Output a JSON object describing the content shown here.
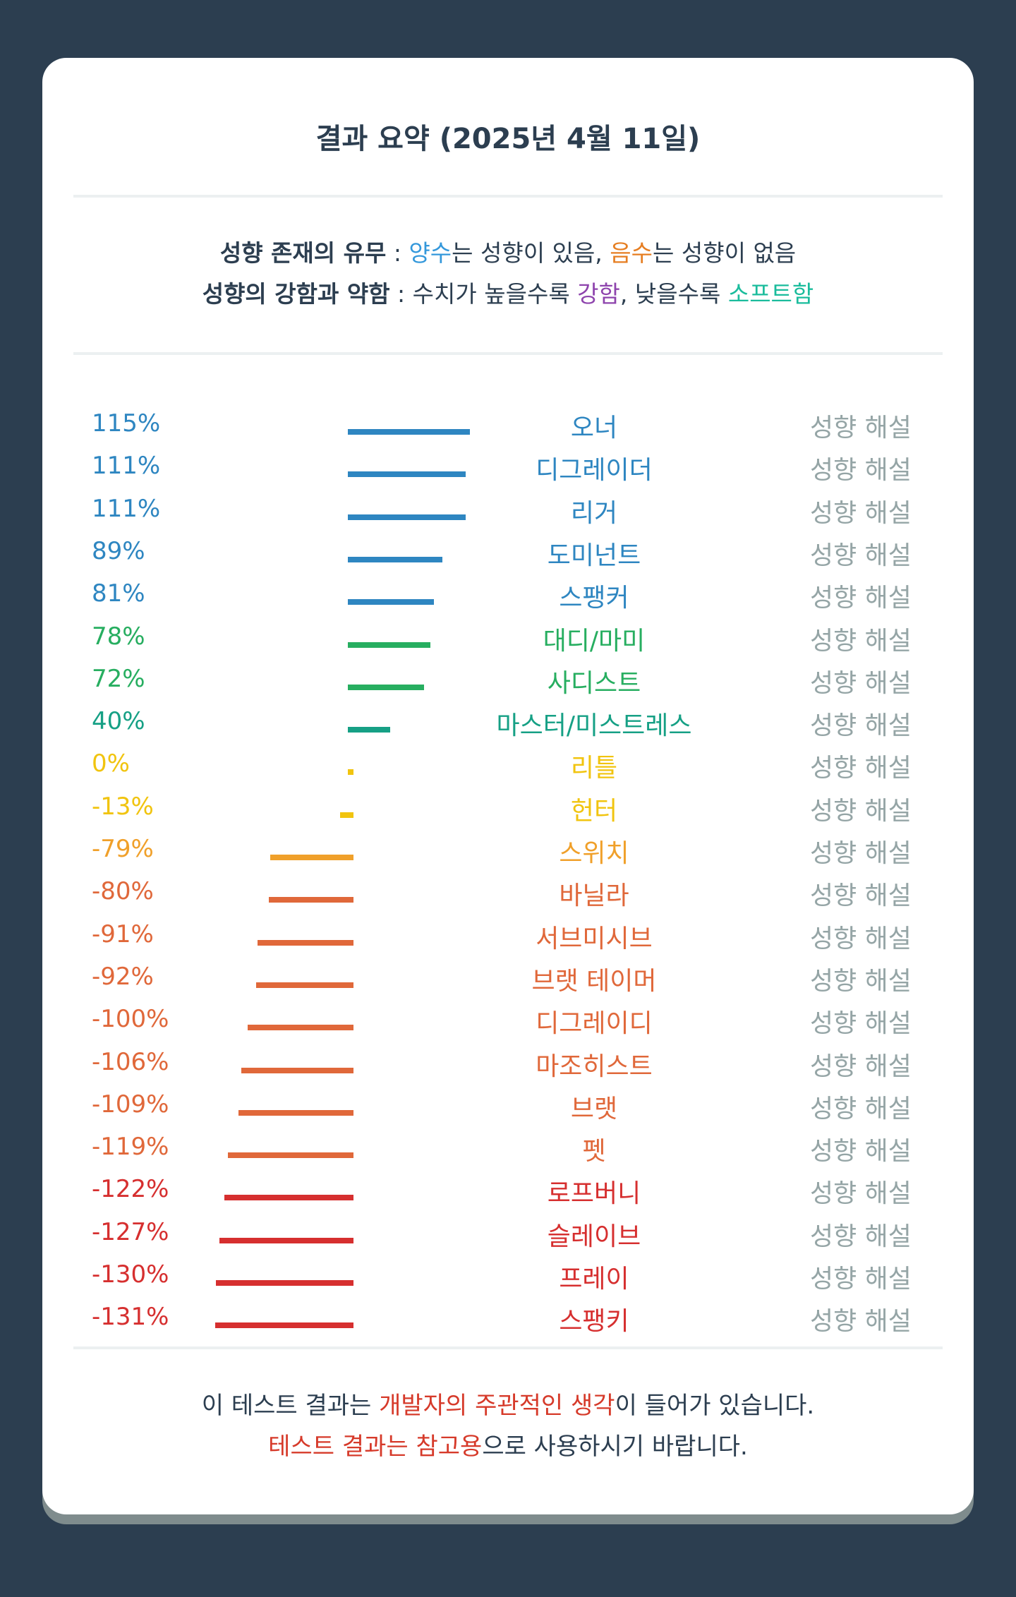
{
  "title": "결과 요약 (2025년 4월 11일)",
  "legend": {
    "line1": {
      "label": "성향 존재의 유무",
      "sep": " : ",
      "positive": "양수",
      "positive_text": "는 성향이 있음, ",
      "negative": "음수",
      "negative_text": "는 성향이 없음"
    },
    "line2": {
      "label": "성향의 강함과 약함",
      "sep": " : ",
      "text1": "수치가 높을수록 ",
      "strong": "강함",
      "text2": ", 낮을수록 ",
      "soft": "소프트함"
    }
  },
  "link_label": "성향 해설",
  "rows": [
    {
      "name": "오너",
      "value": 115,
      "display": "115%",
      "color": "#2e86c1"
    },
    {
      "name": "디그레이더",
      "value": 111,
      "display": "111%",
      "color": "#2e86c1"
    },
    {
      "name": "리거",
      "value": 111,
      "display": "111%",
      "color": "#2e86c1"
    },
    {
      "name": "도미넌트",
      "value": 89,
      "display": "89%",
      "color": "#2e86c1"
    },
    {
      "name": "스팽커",
      "value": 81,
      "display": "81%",
      "color": "#2e86c1"
    },
    {
      "name": "대디/마미",
      "value": 78,
      "display": "78%",
      "color": "#27ae60"
    },
    {
      "name": "사디스트",
      "value": 72,
      "display": "72%",
      "color": "#27ae60"
    },
    {
      "name": "마스터/미스트레스",
      "value": 40,
      "display": "40%",
      "color": "#16a085"
    },
    {
      "name": "리틀",
      "value": 0,
      "display": "0%",
      "color": "#f1c40f"
    },
    {
      "name": "헌터",
      "value": -13,
      "display": "-13%",
      "color": "#f1c40f"
    },
    {
      "name": "스위치",
      "value": -79,
      "display": "-79%",
      "color": "#f0a02a"
    },
    {
      "name": "바닐라",
      "value": -80,
      "display": "-80%",
      "color": "#e0683a"
    },
    {
      "name": "서브미시브",
      "value": -91,
      "display": "-91%",
      "color": "#e0683a"
    },
    {
      "name": "브랫 테이머",
      "value": -92,
      "display": "-92%",
      "color": "#e0683a"
    },
    {
      "name": "디그레이디",
      "value": -100,
      "display": "-100%",
      "color": "#e0683a"
    },
    {
      "name": "마조히스트",
      "value": -106,
      "display": "-106%",
      "color": "#e0683a"
    },
    {
      "name": "브랫",
      "value": -109,
      "display": "-109%",
      "color": "#e0683a"
    },
    {
      "name": "펫",
      "value": -119,
      "display": "-119%",
      "color": "#e0683a"
    },
    {
      "name": "로프버니",
      "value": -122,
      "display": "-122%",
      "color": "#d62f2f"
    },
    {
      "name": "슬레이브",
      "value": -127,
      "display": "-127%",
      "color": "#d62f2f"
    },
    {
      "name": "프레이",
      "value": -130,
      "display": "-130%",
      "color": "#d62f2f"
    },
    {
      "name": "스팽키",
      "value": -131,
      "display": "-131%",
      "color": "#d62f2f"
    }
  ],
  "footer": {
    "line1": {
      "text1": "이 테스트 결과는 ",
      "highlight": "개발자의 주관적인 생각",
      "text2": "이 들어가 있습니다."
    },
    "line2": {
      "highlight": "테스트 결과는 참고용",
      "text": "으로 사용하시기 바랍니다."
    }
  }
}
